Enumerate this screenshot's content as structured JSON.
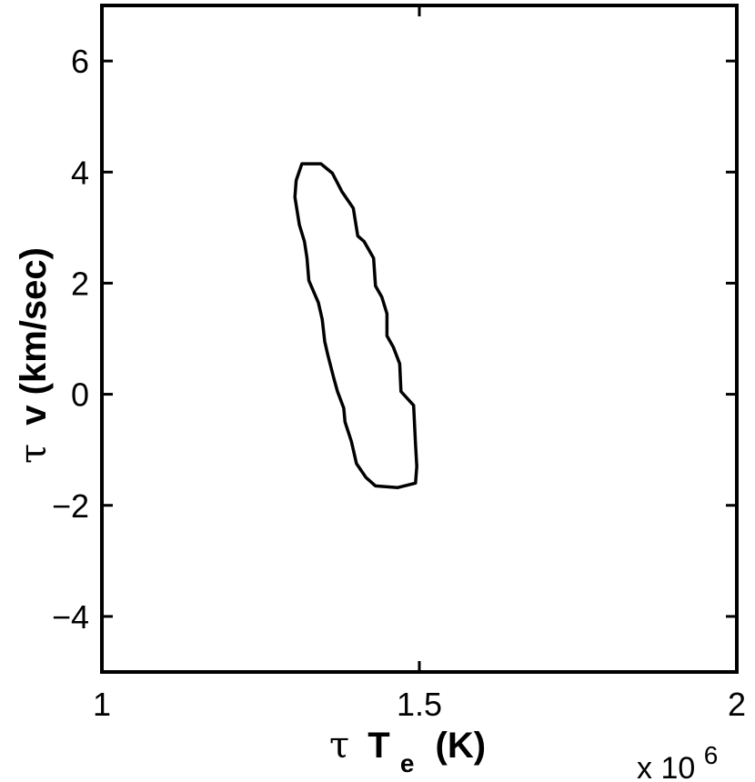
{
  "chart_data": {
    "type": "line",
    "title": "",
    "xlabel": {
      "tau": "τ",
      "main": "T",
      "sub": "e",
      "unit": "(K)"
    },
    "ylabel": {
      "tau": "τ",
      "main": "v (km/sec)"
    },
    "xlim": [
      1,
      2
    ],
    "ylim": [
      -5,
      7
    ],
    "x_ticks": [
      1,
      1.5,
      2
    ],
    "x_tick_labels": [
      "1",
      "1.5",
      "2"
    ],
    "y_ticks": [
      -4,
      -2,
      0,
      2,
      4,
      6
    ],
    "y_tick_labels": [
      "−4",
      "−2",
      "0",
      "2",
      "4",
      "6"
    ],
    "x_multiplier": {
      "base": "x 10",
      "exponent": "6"
    },
    "grid": false,
    "series": [
      {
        "style": "closed-contour",
        "color": "#000000",
        "points": [
          [
            1.315,
            4.15
          ],
          [
            1.345,
            4.15
          ],
          [
            1.363,
            3.98
          ],
          [
            1.378,
            3.65
          ],
          [
            1.396,
            3.35
          ],
          [
            1.403,
            2.85
          ],
          [
            1.413,
            2.75
          ],
          [
            1.428,
            2.45
          ],
          [
            1.431,
            1.95
          ],
          [
            1.441,
            1.75
          ],
          [
            1.449,
            1.45
          ],
          [
            1.449,
            1.05
          ],
          [
            1.459,
            0.85
          ],
          [
            1.469,
            0.55
          ],
          [
            1.471,
            0.05
          ],
          [
            1.491,
            -0.2
          ],
          [
            1.494,
            -0.9
          ],
          [
            1.496,
            -1.3
          ],
          [
            1.494,
            -1.6
          ],
          [
            1.466,
            -1.68
          ],
          [
            1.431,
            -1.65
          ],
          [
            1.416,
            -1.5
          ],
          [
            1.401,
            -1.25
          ],
          [
            1.393,
            -0.85
          ],
          [
            1.383,
            -0.5
          ],
          [
            1.381,
            -0.25
          ],
          [
            1.371,
            0.05
          ],
          [
            1.365,
            0.3
          ],
          [
            1.356,
            0.7
          ],
          [
            1.351,
            0.95
          ],
          [
            1.347,
            1.35
          ],
          [
            1.341,
            1.65
          ],
          [
            1.326,
            2.05
          ],
          [
            1.323,
            2.45
          ],
          [
            1.319,
            2.75
          ],
          [
            1.311,
            3.05
          ],
          [
            1.304,
            3.55
          ],
          [
            1.306,
            3.85
          ],
          [
            1.315,
            4.15
          ]
        ]
      }
    ]
  }
}
